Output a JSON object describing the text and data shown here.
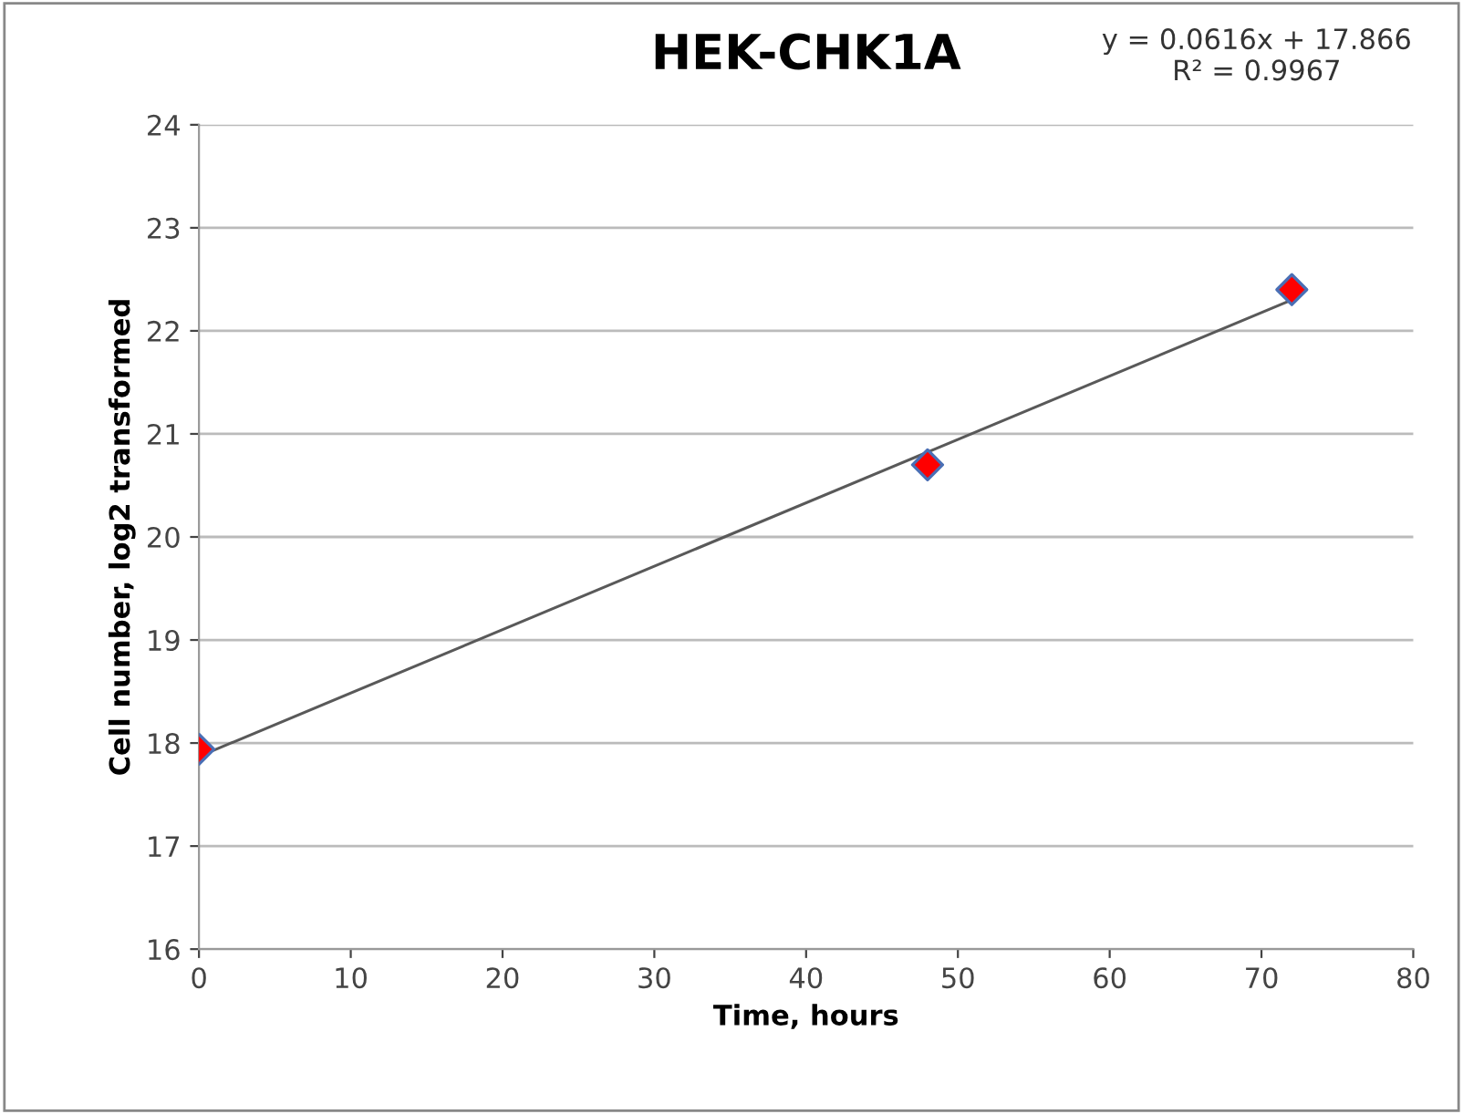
{
  "chart_data": {
    "type": "scatter",
    "title": "HEK-CHK1A",
    "xlabel": "Time, hours",
    "ylabel": "Cell number, log2 transformed",
    "annotations": [
      "y = 0.0616x + 17.866\nR² = 0.9967"
    ],
    "series": [
      {
        "color": "#ff0000",
        "marker": "diamond",
        "x": [
          0,
          48,
          72
        ],
        "values": [
          17.94,
          20.7,
          22.4
        ]
      },
      {
        "type": "line",
        "color": "#595959",
        "marker": "none",
        "line_style": "solid",
        "x": [
          0,
          72
        ],
        "values": [
          17.87,
          22.3
        ]
      }
    ],
    "xlim": [
      0,
      80
    ],
    "xticks": [
      0,
      10,
      20,
      30,
      40,
      50,
      60,
      70,
      80
    ],
    "ylim": [
      16,
      24
    ],
    "yticks": [
      16,
      17,
      18,
      19,
      20,
      21,
      22,
      23,
      24
    ],
    "grid": "y",
    "legend": false
  }
}
